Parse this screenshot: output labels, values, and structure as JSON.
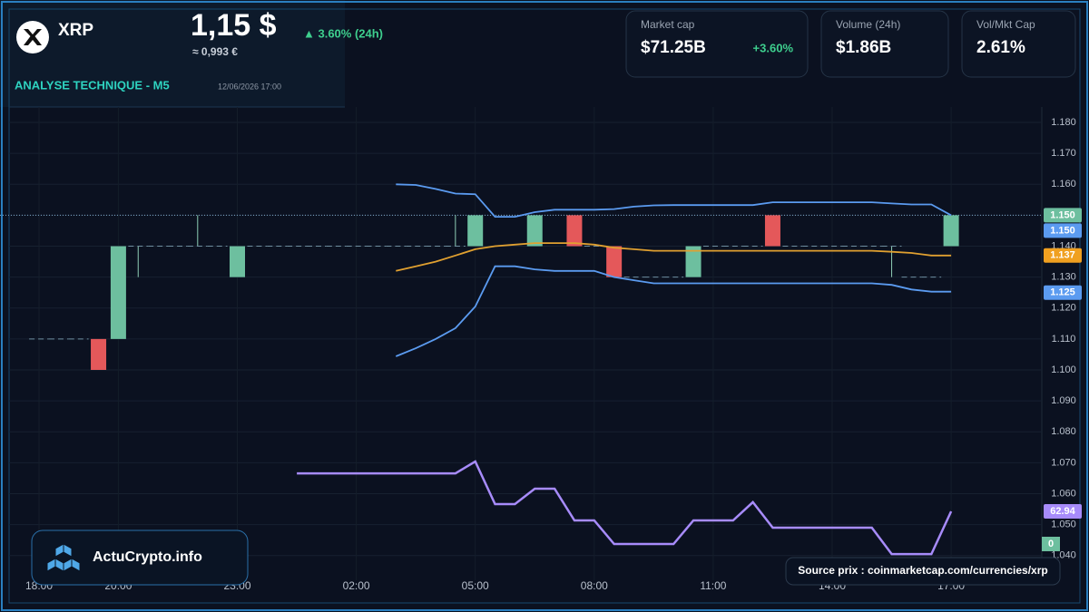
{
  "header": {
    "symbol": "XRP",
    "price": "1,15 $",
    "change": "▲ 3.60% (24h)",
    "eur": "≈ 0,993 €",
    "section": "ANALYSE TECHNIQUE - M5",
    "datetime": "12/06/2026 17:00"
  },
  "stats": [
    {
      "label": "Market cap",
      "value": "$71.25B",
      "change": "+3.60%"
    },
    {
      "label": "Volume (24h)",
      "value": "$1.86B"
    },
    {
      "label": "Vol/Mkt Cap",
      "value": "2.61%"
    }
  ],
  "branding": "ActuCrypto.info",
  "source": "Source prix : coinmarketcap.com/currencies/xrp",
  "chart_data": {
    "type": "candlestick",
    "up_color": "#6dbf9f",
    "down_color": "#e4585a",
    "categories": [
      "18:00",
      null,
      null,
      null,
      "20:00",
      null,
      null,
      null,
      null,
      null,
      "23:00",
      null,
      null,
      null,
      null,
      null,
      "02:00",
      null,
      null,
      null,
      null,
      null,
      "05:00",
      null,
      null,
      null,
      null,
      null,
      "08:00",
      null,
      null,
      null,
      null,
      null,
      "11:00",
      null,
      null,
      null,
      null,
      null,
      "14:00",
      null,
      null,
      null,
      null,
      null,
      "17:00"
    ],
    "open": [
      1.11,
      1.11,
      1.11,
      1.11,
      1.11,
      1.14,
      1.14,
      1.14,
      1.14,
      1.14,
      1.13,
      1.14,
      1.14,
      1.14,
      1.14,
      1.14,
      1.14,
      1.14,
      1.14,
      1.14,
      1.14,
      1.14,
      1.14,
      null,
      null,
      1.14,
      null,
      1.15,
      1.14,
      1.14,
      1.13,
      1.13,
      1.13,
      1.13,
      1.14,
      1.14,
      1.14,
      1.15,
      1.14,
      1.14,
      1.14,
      1.14,
      1.14,
      1.14,
      1.13,
      1.13,
      1.14
    ],
    "high": [
      1.11,
      1.11,
      1.11,
      1.11,
      1.14,
      1.14,
      1.14,
      1.14,
      1.15,
      1.14,
      1.14,
      1.14,
      1.14,
      1.14,
      1.14,
      1.14,
      1.14,
      1.14,
      1.14,
      1.14,
      1.14,
      1.15,
      1.15,
      null,
      null,
      1.15,
      null,
      1.15,
      1.14,
      1.14,
      1.13,
      1.13,
      1.13,
      1.14,
      1.14,
      1.14,
      1.14,
      1.15,
      1.14,
      1.14,
      1.14,
      1.14,
      1.14,
      1.14,
      1.13,
      1.13,
      1.15
    ],
    "low": [
      1.11,
      1.11,
      1.11,
      1.1,
      1.11,
      1.13,
      1.14,
      1.14,
      1.14,
      1.14,
      1.13,
      1.14,
      1.14,
      1.14,
      1.14,
      1.14,
      1.14,
      1.14,
      1.14,
      1.14,
      1.14,
      1.14,
      1.14,
      null,
      null,
      1.14,
      null,
      1.14,
      1.14,
      1.13,
      1.13,
      1.13,
      1.13,
      1.13,
      1.14,
      1.14,
      1.14,
      1.14,
      1.14,
      1.14,
      1.14,
      1.14,
      1.14,
      1.13,
      1.13,
      1.13,
      1.14
    ],
    "close": [
      1.11,
      1.11,
      1.11,
      1.1,
      1.14,
      1.14,
      1.14,
      1.14,
      1.14,
      1.14,
      1.14,
      1.14,
      1.14,
      1.14,
      1.14,
      1.14,
      1.14,
      1.14,
      1.14,
      1.14,
      1.14,
      1.14,
      1.15,
      null,
      null,
      1.15,
      null,
      1.14,
      1.14,
      1.13,
      1.13,
      1.13,
      1.13,
      1.14,
      1.14,
      1.14,
      1.14,
      1.14,
      1.14,
      1.14,
      1.14,
      1.14,
      1.14,
      1.14,
      1.13,
      1.13,
      1.15
    ],
    "overlays": [
      {
        "color": "#5b9bf0",
        "values": [
          null,
          null,
          null,
          null,
          null,
          null,
          null,
          null,
          null,
          null,
          null,
          null,
          null,
          null,
          null,
          null,
          null,
          null,
          1.16,
          1.1598,
          1.1585,
          1.157,
          1.1568,
          1.1495,
          1.1495,
          1.151,
          1.1518,
          1.1518,
          1.1518,
          1.152,
          1.1528,
          1.1532,
          1.1533,
          1.1533,
          1.1533,
          1.1533,
          1.1533,
          1.1542,
          1.1542,
          1.1542,
          1.1542,
          1.1542,
          1.1542,
          1.1538,
          1.1535,
          1.1535,
          1.15
        ]
      },
      {
        "color": "#e0a030",
        "values": [
          null,
          null,
          null,
          null,
          null,
          null,
          null,
          null,
          null,
          null,
          null,
          null,
          null,
          null,
          null,
          null,
          null,
          null,
          1.132,
          1.1335,
          1.135,
          1.137,
          1.139,
          1.14,
          1.1405,
          1.141,
          1.141,
          1.141,
          1.1405,
          1.1395,
          1.139,
          1.1385,
          1.1385,
          1.1385,
          1.1385,
          1.1385,
          1.1385,
          1.1385,
          1.1385,
          1.1385,
          1.1385,
          1.1385,
          1.1385,
          1.1382,
          1.1378,
          1.137,
          1.137
        ]
      },
      {
        "color": "#5b9bf0",
        "values": [
          null,
          null,
          null,
          null,
          null,
          null,
          null,
          null,
          null,
          null,
          null,
          null,
          null,
          null,
          null,
          null,
          null,
          null,
          1.1044,
          1.107,
          1.11,
          1.1135,
          1.1205,
          1.1335,
          1.1335,
          1.1325,
          1.132,
          1.132,
          1.132,
          1.13,
          1.129,
          1.128,
          1.128,
          1.128,
          1.128,
          1.128,
          1.128,
          1.128,
          1.128,
          1.128,
          1.128,
          1.128,
          1.128,
          1.1275,
          1.126,
          1.1253,
          1.1253
        ]
      },
      {
        "color": "#a78bfa",
        "axis": "y2",
        "values": [
          null,
          null,
          null,
          null,
          null,
          null,
          null,
          null,
          null,
          null,
          null,
          null,
          null,
          85.7,
          85.7,
          85.7,
          85.7,
          85.7,
          85.7,
          85.7,
          85.7,
          85.7,
          92.8,
          67.3,
          67.3,
          76.5,
          76.5,
          57.5,
          57.5,
          43.4,
          43.4,
          43.4,
          43.4,
          57.5,
          57.5,
          57.5,
          68.4,
          53.2,
          53.2,
          53.2,
          53.2,
          53.2,
          53.2,
          37.4,
          37.4,
          37.4,
          62.94
        ]
      }
    ],
    "ylim": [
      1.032,
      1.185
    ],
    "yticks": [
      {
        "value": 1.04,
        "label": "1.040"
      },
      {
        "value": 1.05,
        "label": "1.050"
      },
      {
        "value": 1.06,
        "label": "1.060"
      },
      {
        "value": 1.07,
        "label": "1.070"
      },
      {
        "value": 1.08,
        "label": "1.080"
      },
      {
        "value": 1.09,
        "label": "1.090"
      },
      {
        "value": 1.1,
        "label": "1.100"
      },
      {
        "value": 1.11,
        "label": "1.110"
      },
      {
        "value": 1.12,
        "label": "1.120"
      },
      {
        "value": 1.13,
        "label": "1.130"
      },
      {
        "value": 1.14,
        "label": "1.140"
      },
      {
        "value": 1.15,
        "label": "1.150"
      },
      {
        "value": 1.16,
        "label": "1.160"
      },
      {
        "value": 1.17,
        "label": "1.170"
      },
      {
        "value": 1.18,
        "label": "1.180"
      }
    ],
    "y2lim": [
      0,
      100
    ],
    "grid": true,
    "price_tags": [
      {
        "value": 1.15,
        "label": "1.150",
        "color": "#6dbf9f"
      },
      {
        "value": 1.15,
        "label": "1.150",
        "color": "#5b9bf0"
      },
      {
        "value": 1.137,
        "label": "1.137",
        "color": "#f0a020"
      },
      {
        "value": 1.125,
        "label": "1.125",
        "color": "#5b9bf0"
      }
    ],
    "y2_tags": [
      {
        "value": 62.94,
        "color": "#a78bfa"
      },
      {
        "value": 0,
        "color": "#6dbf9f"
      }
    ]
  }
}
